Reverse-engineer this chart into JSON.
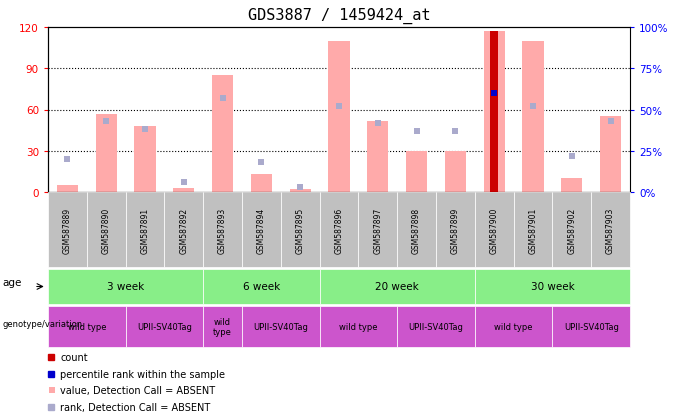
{
  "title": "GDS3887 / 1459424_at",
  "samples": [
    "GSM587889",
    "GSM587890",
    "GSM587891",
    "GSM587892",
    "GSM587893",
    "GSM587894",
    "GSM587895",
    "GSM587896",
    "GSM587897",
    "GSM587898",
    "GSM587899",
    "GSM587900",
    "GSM587901",
    "GSM587902",
    "GSM587903"
  ],
  "pink_bar_heights": [
    5,
    57,
    48,
    3,
    85,
    13,
    2,
    110,
    52,
    30,
    30,
    117,
    110,
    10,
    55
  ],
  "blue_sq_values": [
    20,
    43,
    38,
    6,
    57,
    18,
    3,
    52,
    42,
    37,
    37,
    60,
    52,
    22,
    43
  ],
  "count_index": 11,
  "count_value": 117,
  "count_pct_rank": 60,
  "ylim_left": [
    0,
    120
  ],
  "ylim_right": [
    0,
    100
  ],
  "yticks_left": [
    0,
    30,
    60,
    90,
    120
  ],
  "ytick_labels_left": [
    "0",
    "30",
    "60",
    "90",
    "120"
  ],
  "yticks_right": [
    0,
    25,
    50,
    75,
    100
  ],
  "ytick_labels_right": [
    "0%",
    "25%",
    "50%",
    "75%",
    "100%"
  ],
  "age_groups": [
    {
      "label": "3 week",
      "start": 0,
      "end": 4
    },
    {
      "label": "6 week",
      "start": 4,
      "end": 7
    },
    {
      "label": "20 week",
      "start": 7,
      "end": 11
    },
    {
      "label": "30 week",
      "start": 11,
      "end": 15
    }
  ],
  "genotype_groups": [
    {
      "label": "wild type",
      "start": 0,
      "end": 2
    },
    {
      "label": "UPII-SV40Tag",
      "start": 2,
      "end": 4
    },
    {
      "label": "wild\ntype",
      "start": 4,
      "end": 5
    },
    {
      "label": "UPII-SV40Tag",
      "start": 5,
      "end": 7
    },
    {
      "label": "wild type",
      "start": 7,
      "end": 9
    },
    {
      "label": "UPII-SV40Tag",
      "start": 9,
      "end": 11
    },
    {
      "label": "wild type",
      "start": 11,
      "end": 13
    },
    {
      "label": "UPII-SV40Tag",
      "start": 13,
      "end": 15
    }
  ],
  "age_color": "#88ee88",
  "genotype_color": "#cc55cc",
  "sample_bg_color": "#c0c0c0",
  "pink_color": "#ffaaaa",
  "blue_sq_color": "#aaaacc",
  "red_color": "#cc0000",
  "blue_dot_color": "#0000cc",
  "title_fontsize": 11,
  "axis_fontsize": 7.5,
  "tick_label_fontsize": 8,
  "sample_fontsize": 5.5,
  "row_fontsize": 7.5,
  "geno_fontsize": 6,
  "legend_fontsize": 7
}
